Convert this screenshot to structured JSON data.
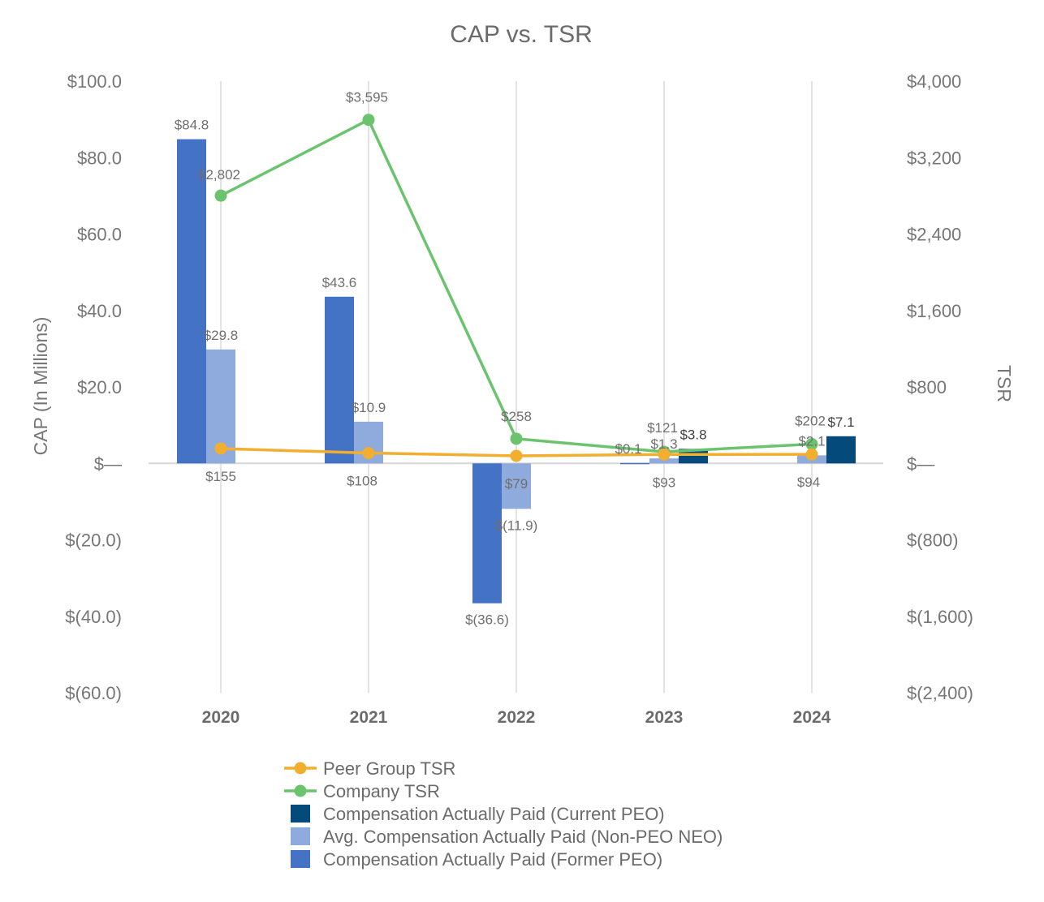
{
  "chart_data": {
    "type": "bar",
    "title": "CAP vs. TSR",
    "categories": [
      "2020",
      "2021",
      "2022",
      "2023",
      "2024"
    ],
    "ylabel": "CAP (In Millions)",
    "y2label": "TSR",
    "ylim": [
      -60,
      100
    ],
    "y2lim": [
      -2400,
      4000
    ],
    "yticks": [
      100,
      80,
      60,
      40,
      20,
      0,
      -20,
      -40,
      -60
    ],
    "yticklabels": [
      "$100.0",
      "$80.0",
      "$60.0",
      "$40.0",
      "$20.0",
      "$—",
      "$(20.0)",
      "$(40.0)",
      "$(60.0)"
    ],
    "y2ticks": [
      4000,
      3200,
      2400,
      1600,
      800,
      0,
      -800,
      -1600,
      -2400
    ],
    "y2ticklabels": [
      "$4,000",
      "$3,200",
      "$2,400",
      "$1,600",
      "$800",
      "$—",
      "$(800)",
      "$(1,600)",
      "$(2,400)"
    ],
    "bar_series": [
      {
        "name": "Compensation Actually Paid (Former PEO)",
        "color": "#4472c4",
        "values": [
          84.8,
          43.6,
          -36.6,
          0.1,
          null
        ],
        "labels": [
          "$84.8",
          "$43.6",
          "$(36.6)",
          "$0.1",
          ""
        ]
      },
      {
        "name": "Avg. Compensation Actually Paid (Non-PEO NEO)",
        "color": "#8faadc",
        "values": [
          29.8,
          10.9,
          -11.9,
          1.3,
          2.1
        ],
        "labels": [
          "$29.8",
          "$10.9",
          "$(11.9)",
          "$1.3",
          "$2.1"
        ]
      },
      {
        "name": "Compensation Actually Paid (Current PEO)",
        "color": "#044a7a",
        "values": [
          null,
          null,
          null,
          3.8,
          7.1
        ],
        "labels": [
          "",
          "",
          "",
          "$3.8",
          "$7.1"
        ]
      }
    ],
    "line_series": [
      {
        "name": "Company TSR",
        "color": "#6cc36e",
        "axis": "right",
        "values": [
          2802,
          3595,
          258,
          121,
          202
        ],
        "labels": [
          "$2,802",
          "$3,595",
          "$258",
          "$121",
          "$202"
        ]
      },
      {
        "name": "Peer Group TSR",
        "color": "#f2ae2e",
        "axis": "right",
        "values": [
          155,
          108,
          79,
          93,
          94
        ],
        "labels": [
          "$155",
          "$108",
          "$79",
          "$93",
          "$94"
        ]
      }
    ],
    "legend": [
      {
        "name": "Peer Group TSR",
        "kind": "line",
        "color": "#f2ae2e"
      },
      {
        "name": "Company TSR",
        "kind": "line",
        "color": "#6cc36e"
      },
      {
        "name": "Compensation Actually Paid (Current PEO)",
        "kind": "bar",
        "color": "#044a7a"
      },
      {
        "name": "Avg. Compensation Actually Paid (Non-PEO NEO)",
        "kind": "bar",
        "color": "#8faadc"
      },
      {
        "name": "Compensation Actually Paid (Former PEO)",
        "kind": "bar",
        "color": "#4472c4"
      }
    ],
    "legend_position": "bottom",
    "grid": "vertical"
  }
}
